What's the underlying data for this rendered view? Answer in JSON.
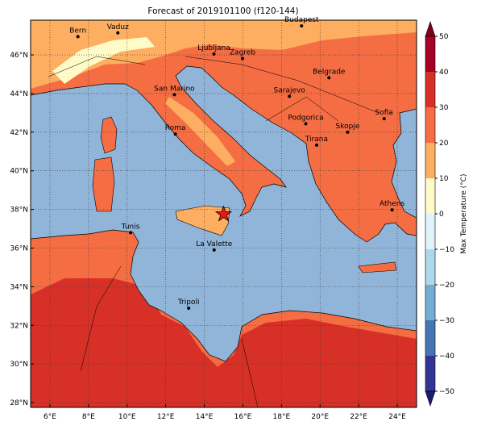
{
  "title": "Forecast of 2019101100 (f120-144)",
  "map": {
    "xlim": [
      5,
      25
    ],
    "ylim": [
      27.75,
      47.8
    ],
    "xticks": [
      {
        "value": 6,
        "label": "6°E"
      },
      {
        "value": 8,
        "label": "8°E"
      },
      {
        "value": 10,
        "label": "10°E"
      },
      {
        "value": 12,
        "label": "12°E"
      },
      {
        "value": 14,
        "label": "14°E"
      },
      {
        "value": 16,
        "label": "16°E"
      },
      {
        "value": 18,
        "label": "18°E"
      },
      {
        "value": 20,
        "label": "20°E"
      },
      {
        "value": 22,
        "label": "22°E"
      },
      {
        "value": 24,
        "label": "24°E"
      }
    ],
    "yticks": [
      {
        "value": 28,
        "label": "28°N"
      },
      {
        "value": 30,
        "label": "30°N"
      },
      {
        "value": 32,
        "label": "32°N"
      },
      {
        "value": 34,
        "label": "34°N"
      },
      {
        "value": 36,
        "label": "36°N"
      },
      {
        "value": 38,
        "label": "38°N"
      },
      {
        "value": 40,
        "label": "40°N"
      },
      {
        "value": 42,
        "label": "42°N"
      },
      {
        "value": 44,
        "label": "44°N"
      },
      {
        "value": 46,
        "label": "46°N"
      }
    ],
    "grid": true,
    "star": {
      "lon": 15.0,
      "lat": 37.75,
      "color": "#e41a1c"
    },
    "cities": [
      {
        "name": "Bern",
        "lon": 7.45,
        "lat": 46.95
      },
      {
        "name": "Vaduz",
        "lon": 9.52,
        "lat": 47.14
      },
      {
        "name": "Budapest",
        "lon": 19.04,
        "lat": 47.5
      },
      {
        "name": "Ljubljana",
        "lon": 14.5,
        "lat": 46.05
      },
      {
        "name": "Zagreb",
        "lon": 15.98,
        "lat": 45.81
      },
      {
        "name": "Belgrade",
        "lon": 20.46,
        "lat": 44.82
      },
      {
        "name": "Sarajevo",
        "lon": 18.41,
        "lat": 43.86
      },
      {
        "name": "San Marino",
        "lon": 12.45,
        "lat": 43.94
      },
      {
        "name": "Sofia",
        "lon": 23.32,
        "lat": 42.7
      },
      {
        "name": "Podgorica",
        "lon": 19.26,
        "lat": 42.44
      },
      {
        "name": "Skopje",
        "lon": 21.43,
        "lat": 42.0
      },
      {
        "name": "Roma",
        "lon": 12.5,
        "lat": 41.9
      },
      {
        "name": "Tirana",
        "lon": 19.82,
        "lat": 41.33
      },
      {
        "name": "Athens",
        "lon": 23.73,
        "lat": 37.98
      },
      {
        "name": "Tunis",
        "lon": 10.18,
        "lat": 36.8
      },
      {
        "name": "La Valette",
        "lon": 14.51,
        "lat": 35.9
      },
      {
        "name": "Tripoli",
        "lon": 13.19,
        "lat": 32.89
      }
    ]
  },
  "colorbar": {
    "label": "Max Temperature (°C)",
    "ticks": [
      {
        "value": -50,
        "label": "−50"
      },
      {
        "value": -40,
        "label": "−40"
      },
      {
        "value": -30,
        "label": "−30"
      },
      {
        "value": -20,
        "label": "−20"
      },
      {
        "value": -10,
        "label": "−10"
      },
      0,
      10,
      20,
      30,
      40,
      50
    ],
    "colors": [
      "#313695",
      "#4575b4",
      "#74add1",
      "#abd9e9",
      "#e0f3f8",
      "#fffbc8",
      "#fdae61",
      "#f46d43",
      "#d73027",
      "#a50026"
    ],
    "over_color": "#7f0020",
    "under_color": "#1c1c70"
  }
}
